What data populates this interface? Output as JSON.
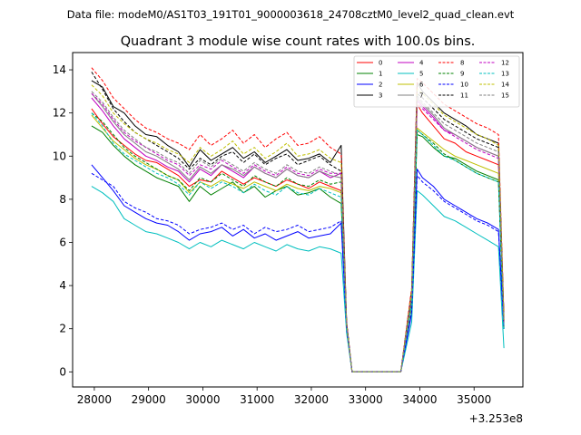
{
  "chart_data": {
    "type": "line",
    "suptitle": "Data file: modeM0/AS1T03_191T01_9000003618_24708cztM0_level2_quad_clean.evt",
    "title": "Quadrant 3 module wise count rates with 100.0s bins.",
    "xlabel": "",
    "ylabel": "",
    "x_offset_label": "+3.253e8",
    "xlim": [
      27600,
      35900
    ],
    "ylim": [
      -0.7,
      14.8
    ],
    "xticks": [
      28000,
      29000,
      30000,
      31000,
      32000,
      33000,
      34000,
      35000
    ],
    "xtick_labels": [
      "28000",
      "29000",
      "30000",
      "31000",
      "32000",
      "33000",
      "34000",
      "35000"
    ],
    "yticks": [
      0,
      2,
      4,
      6,
      8,
      10,
      12,
      14
    ],
    "ytick_labels": [
      "0",
      "2",
      "4",
      "6",
      "8",
      "10",
      "12",
      "14"
    ],
    "legend_position": "upper right",
    "legend_columns": 4,
    "x": [
      27950,
      28150,
      28350,
      28550,
      28750,
      28950,
      29150,
      29350,
      29550,
      29750,
      29950,
      30150,
      30350,
      30550,
      30750,
      30950,
      31150,
      31350,
      31550,
      31750,
      31950,
      32150,
      32350,
      32550,
      32650,
      32750,
      33050,
      33350,
      33650,
      33850,
      33950,
      34050,
      34250,
      34450,
      34650,
      34850,
      35050,
      35250,
      35450,
      35550
    ],
    "series": [
      {
        "name": "0",
        "color": "#ff0000",
        "dash": "solid",
        "values": [
          12.2,
          11.5,
          10.9,
          10.5,
          10.1,
          9.8,
          9.7,
          9.4,
          9.1,
          8.6,
          8.9,
          8.8,
          9.3,
          9.0,
          8.7,
          9.0,
          8.8,
          8.6,
          8.9,
          8.7,
          8.5,
          8.8,
          8.6,
          8.4,
          2.2,
          0.0,
          0.0,
          0.0,
          0.0,
          3.4,
          12.4,
          12.0,
          11.4,
          10.8,
          10.6,
          10.2,
          10.0,
          9.8,
          9.6,
          2.4
        ]
      },
      {
        "name": "1",
        "color": "#008000",
        "dash": "solid",
        "values": [
          11.4,
          11.1,
          10.5,
          10.0,
          9.6,
          9.3,
          9.0,
          8.8,
          8.6,
          7.9,
          8.6,
          8.2,
          8.5,
          8.8,
          8.3,
          8.6,
          8.1,
          8.4,
          8.6,
          8.2,
          8.3,
          8.5,
          8.1,
          7.8,
          2.1,
          0.0,
          0.0,
          0.0,
          0.0,
          3.1,
          11.0,
          10.9,
          10.4,
          10.0,
          9.9,
          9.6,
          9.3,
          9.1,
          8.9,
          2.0
        ]
      },
      {
        "name": "2",
        "color": "#0000ff",
        "dash": "solid",
        "values": [
          9.6,
          9.0,
          8.4,
          7.7,
          7.4,
          7.1,
          6.9,
          6.8,
          6.5,
          6.1,
          6.4,
          6.5,
          6.7,
          6.3,
          6.6,
          6.2,
          6.4,
          6.1,
          6.3,
          6.5,
          6.2,
          6.3,
          6.4,
          6.9,
          2.0,
          0.0,
          0.0,
          0.0,
          0.0,
          2.7,
          9.4,
          9.0,
          8.6,
          8.0,
          7.7,
          7.4,
          7.1,
          6.9,
          6.6,
          2.0
        ]
      },
      {
        "name": "3",
        "color": "#000000",
        "dash": "solid",
        "values": [
          13.5,
          13.2,
          12.3,
          12.0,
          11.4,
          11.0,
          10.9,
          10.5,
          10.2,
          9.5,
          10.3,
          9.8,
          10.1,
          10.4,
          9.9,
          10.2,
          9.7,
          10.0,
          10.3,
          9.8,
          9.9,
          10.1,
          9.7,
          10.5,
          2.3,
          0.0,
          0.0,
          0.0,
          0.0,
          3.8,
          13.4,
          13.0,
          12.5,
          12.0,
          11.7,
          11.4,
          11.0,
          10.8,
          10.6,
          2.5
        ]
      },
      {
        "name": "4",
        "color": "#c000c0",
        "dash": "solid",
        "values": [
          12.7,
          12.1,
          11.4,
          10.8,
          10.4,
          10.0,
          9.8,
          9.5,
          9.3,
          8.8,
          9.4,
          9.1,
          9.6,
          9.3,
          9.0,
          9.5,
          9.2,
          9.0,
          9.4,
          9.1,
          9.0,
          9.3,
          9.0,
          9.2,
          2.2,
          0.0,
          0.0,
          0.0,
          0.0,
          3.5,
          12.6,
          12.3,
          11.8,
          11.2,
          11.0,
          10.7,
          10.4,
          10.2,
          10.0,
          2.3
        ]
      },
      {
        "name": "5",
        "color": "#00bfbf",
        "dash": "solid",
        "values": [
          8.6,
          8.3,
          7.9,
          7.1,
          6.8,
          6.5,
          6.4,
          6.2,
          6.0,
          5.7,
          6.0,
          5.8,
          6.1,
          5.9,
          5.7,
          6.0,
          5.8,
          5.6,
          5.9,
          5.7,
          5.6,
          5.8,
          5.7,
          5.5,
          1.8,
          0.0,
          0.0,
          0.0,
          0.0,
          2.3,
          8.4,
          8.2,
          7.7,
          7.2,
          7.0,
          6.7,
          6.4,
          6.1,
          5.8,
          1.1
        ]
      },
      {
        "name": "6",
        "color": "#bfbf00",
        "dash": "solid",
        "values": [
          11.9,
          11.3,
          10.7,
          10.3,
          9.9,
          9.6,
          9.4,
          9.1,
          8.9,
          8.3,
          8.8,
          8.6,
          8.9,
          8.7,
          8.5,
          8.8,
          8.6,
          8.4,
          8.7,
          8.5,
          8.4,
          8.6,
          8.5,
          8.3,
          2.1,
          0.0,
          0.0,
          0.0,
          0.0,
          3.2,
          11.3,
          11.1,
          10.7,
          10.3,
          10.0,
          9.8,
          9.6,
          9.4,
          9.2,
          2.2
        ]
      },
      {
        "name": "7",
        "color": "#808080",
        "dash": "solid",
        "values": [
          12.9,
          12.3,
          11.6,
          11.0,
          10.6,
          10.2,
          10.0,
          9.7,
          9.4,
          8.9,
          9.5,
          9.2,
          9.6,
          9.4,
          9.1,
          9.5,
          9.2,
          9.0,
          9.4,
          9.1,
          9.0,
          9.3,
          9.1,
          9.0,
          2.2,
          0.0,
          0.0,
          0.0,
          0.0,
          3.5,
          12.7,
          12.4,
          11.9,
          11.3,
          11.0,
          10.7,
          10.4,
          10.2,
          10.0,
          2.3
        ]
      },
      {
        "name": "8",
        "color": "#ff0000",
        "dash": "dashed",
        "values": [
          14.1,
          13.5,
          12.7,
          12.2,
          11.7,
          11.3,
          11.1,
          10.8,
          10.6,
          10.3,
          11.0,
          10.5,
          10.8,
          11.2,
          10.6,
          11.0,
          10.4,
          10.8,
          11.1,
          10.5,
          10.6,
          10.9,
          10.4,
          10.1,
          2.3,
          0.0,
          0.0,
          0.0,
          0.0,
          3.9,
          13.6,
          13.4,
          12.9,
          12.4,
          12.1,
          11.8,
          11.5,
          11.3,
          11.0,
          2.6
        ]
      },
      {
        "name": "9",
        "color": "#008000",
        "dash": "dashed",
        "values": [
          12.0,
          11.6,
          11.0,
          10.4,
          10.0,
          9.7,
          9.4,
          9.1,
          8.9,
          8.4,
          9.0,
          8.8,
          9.2,
          8.9,
          8.6,
          9.1,
          8.8,
          8.6,
          9.0,
          8.7,
          8.6,
          8.9,
          8.7,
          8.8,
          2.1,
          0.0,
          0.0,
          0.0,
          0.0,
          3.3,
          11.2,
          11.0,
          10.6,
          10.1,
          9.8,
          9.5,
          9.2,
          9.0,
          8.8,
          2.0
        ]
      },
      {
        "name": "10",
        "color": "#0000ff",
        "dash": "dashed",
        "values": [
          9.2,
          8.9,
          8.6,
          7.9,
          7.6,
          7.4,
          7.1,
          7.0,
          6.8,
          6.4,
          6.6,
          6.7,
          6.9,
          6.6,
          6.8,
          6.4,
          6.7,
          6.5,
          6.6,
          6.8,
          6.5,
          6.6,
          6.7,
          7.0,
          2.0,
          0.0,
          0.0,
          0.0,
          0.0,
          2.8,
          9.1,
          8.8,
          8.4,
          7.9,
          7.6,
          7.3,
          7.0,
          6.8,
          6.5,
          2.0
        ]
      },
      {
        "name": "11",
        "color": "#000000",
        "dash": "dashed",
        "values": [
          13.9,
          13.1,
          12.2,
          11.6,
          11.1,
          10.8,
          10.5,
          10.2,
          9.9,
          9.4,
          9.9,
          9.6,
          10.0,
          10.2,
          9.7,
          10.1,
          9.6,
          9.9,
          10.1,
          9.6,
          9.8,
          10.0,
          9.6,
          9.3,
          2.3,
          0.0,
          0.0,
          0.0,
          0.0,
          3.6,
          12.9,
          12.7,
          12.2,
          11.7,
          11.4,
          11.1,
          10.8,
          10.6,
          10.4,
          2.4
        ]
      },
      {
        "name": "12",
        "color": "#c000c0",
        "dash": "dashed",
        "values": [
          12.9,
          12.4,
          11.7,
          11.1,
          10.7,
          10.4,
          10.1,
          9.8,
          9.6,
          9.1,
          9.6,
          9.4,
          9.8,
          9.5,
          9.2,
          9.6,
          9.3,
          9.1,
          9.5,
          9.2,
          9.1,
          9.4,
          9.2,
          9.2,
          2.2,
          0.0,
          0.0,
          0.0,
          0.0,
          3.5,
          12.5,
          12.2,
          11.7,
          11.2,
          10.9,
          10.6,
          10.3,
          10.1,
          9.9,
          2.2
        ]
      },
      {
        "name": "13",
        "color": "#00bfbf",
        "dash": "dashed",
        "values": [
          12.0,
          11.4,
          10.6,
          10.1,
          9.8,
          9.5,
          9.2,
          9.0,
          8.7,
          8.2,
          8.8,
          8.5,
          8.8,
          8.6,
          8.3,
          8.7,
          8.4,
          8.2,
          8.6,
          8.3,
          8.2,
          8.5,
          8.3,
          8.1,
          2.1,
          0.0,
          0.0,
          0.0,
          0.0,
          3.2,
          11.2,
          11.0,
          10.5,
          10.0,
          9.8,
          9.5,
          9.2,
          9.0,
          8.8,
          2.0
        ]
      },
      {
        "name": "14",
        "color": "#bfbf00",
        "dash": "dashed",
        "values": [
          13.3,
          12.8,
          12.0,
          11.5,
          11.1,
          10.8,
          10.6,
          10.3,
          10.1,
          9.7,
          10.4,
          10.0,
          10.3,
          10.7,
          10.1,
          10.4,
          9.9,
          10.2,
          10.6,
          10.0,
          10.1,
          10.3,
          9.9,
          9.7,
          2.2,
          0.0,
          0.0,
          0.0,
          0.0,
          3.7,
          13.1,
          12.9,
          12.4,
          11.9,
          11.6,
          11.3,
          11.0,
          10.8,
          10.5,
          2.4
        ]
      },
      {
        "name": "15",
        "color": "#808080",
        "dash": "dashed",
        "values": [
          13.0,
          12.5,
          11.8,
          11.2,
          10.8,
          10.4,
          10.2,
          9.9,
          9.7,
          9.2,
          9.8,
          9.5,
          9.9,
          9.6,
          9.3,
          9.7,
          9.4,
          9.2,
          9.6,
          9.3,
          9.2,
          9.5,
          9.3,
          9.1,
          2.2,
          0.0,
          0.0,
          0.0,
          0.0,
          3.5,
          12.8,
          12.5,
          12.0,
          11.5,
          11.2,
          10.9,
          10.6,
          10.4,
          10.2,
          2.3
        ]
      }
    ]
  }
}
